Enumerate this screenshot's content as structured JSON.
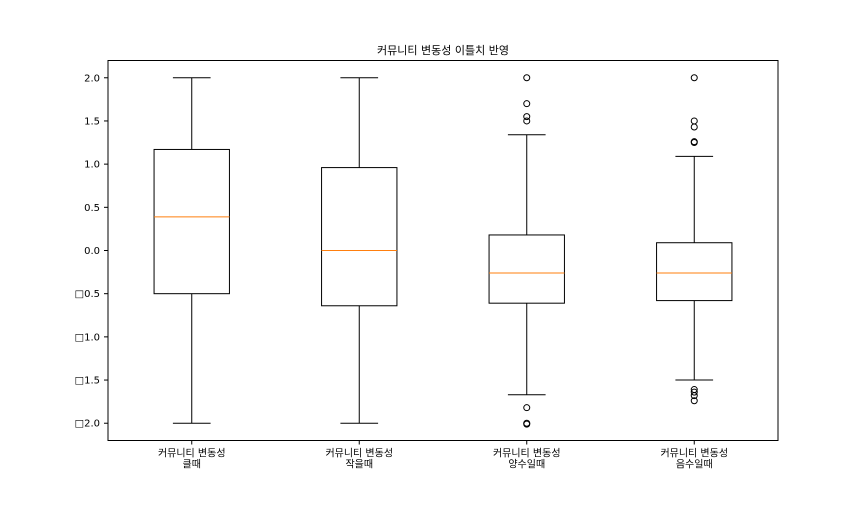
{
  "chart_data": {
    "type": "box",
    "title": "커뮤니티 변동성 이틀치 반영",
    "xlabel": "",
    "ylabel": "",
    "ylim": [
      -2.2,
      2.2
    ],
    "yticks": [
      {
        "value": 2.0,
        "label": "2.0"
      },
      {
        "value": 1.5,
        "label": "1.5"
      },
      {
        "value": 1.0,
        "label": "1.0"
      },
      {
        "value": 0.5,
        "label": "0.5"
      },
      {
        "value": 0.0,
        "label": "0.0"
      },
      {
        "value": -0.5,
        "label": "□0.5"
      },
      {
        "value": -1.0,
        "label": "□1.0"
      },
      {
        "value": -1.5,
        "label": "□1.5"
      },
      {
        "value": -2.0,
        "label": "□2.0"
      }
    ],
    "categories": [
      {
        "line1": "커뮤니티 변동성",
        "line2": "클때"
      },
      {
        "line1": "커뮤니티 변동성",
        "line2": "작을때"
      },
      {
        "line1": "커뮤니티 변동성",
        "line2": "양수일때"
      },
      {
        "line1": "커뮤니티 변동성",
        "line2": "음수일때"
      }
    ],
    "boxes": [
      {
        "whisker_low": -2.0,
        "q1": -0.5,
        "median": 0.39,
        "q3": 1.17,
        "whisker_high": 2.0,
        "outliers": []
      },
      {
        "whisker_low": -2.0,
        "q1": -0.64,
        "median": 0.0,
        "q3": 0.96,
        "whisker_high": 2.0,
        "outliers": []
      },
      {
        "whisker_low": -1.67,
        "q1": -0.61,
        "median": -0.26,
        "q3": 0.18,
        "whisker_high": 1.34,
        "outliers": [
          2.0,
          1.7,
          1.55,
          1.5,
          -1.82,
          -2.0,
          -2.01
        ]
      },
      {
        "whisker_low": -1.5,
        "q1": -0.58,
        "median": -0.26,
        "q3": 0.09,
        "whisker_high": 1.09,
        "outliers": [
          2.0,
          1.5,
          1.43,
          1.26,
          1.25,
          -1.61,
          -1.64,
          -1.68,
          -1.74
        ]
      }
    ],
    "grid": false,
    "legend": "none",
    "colors": {
      "box": "#000000",
      "median": "#ff7f0e",
      "background": "#ffffff"
    }
  }
}
